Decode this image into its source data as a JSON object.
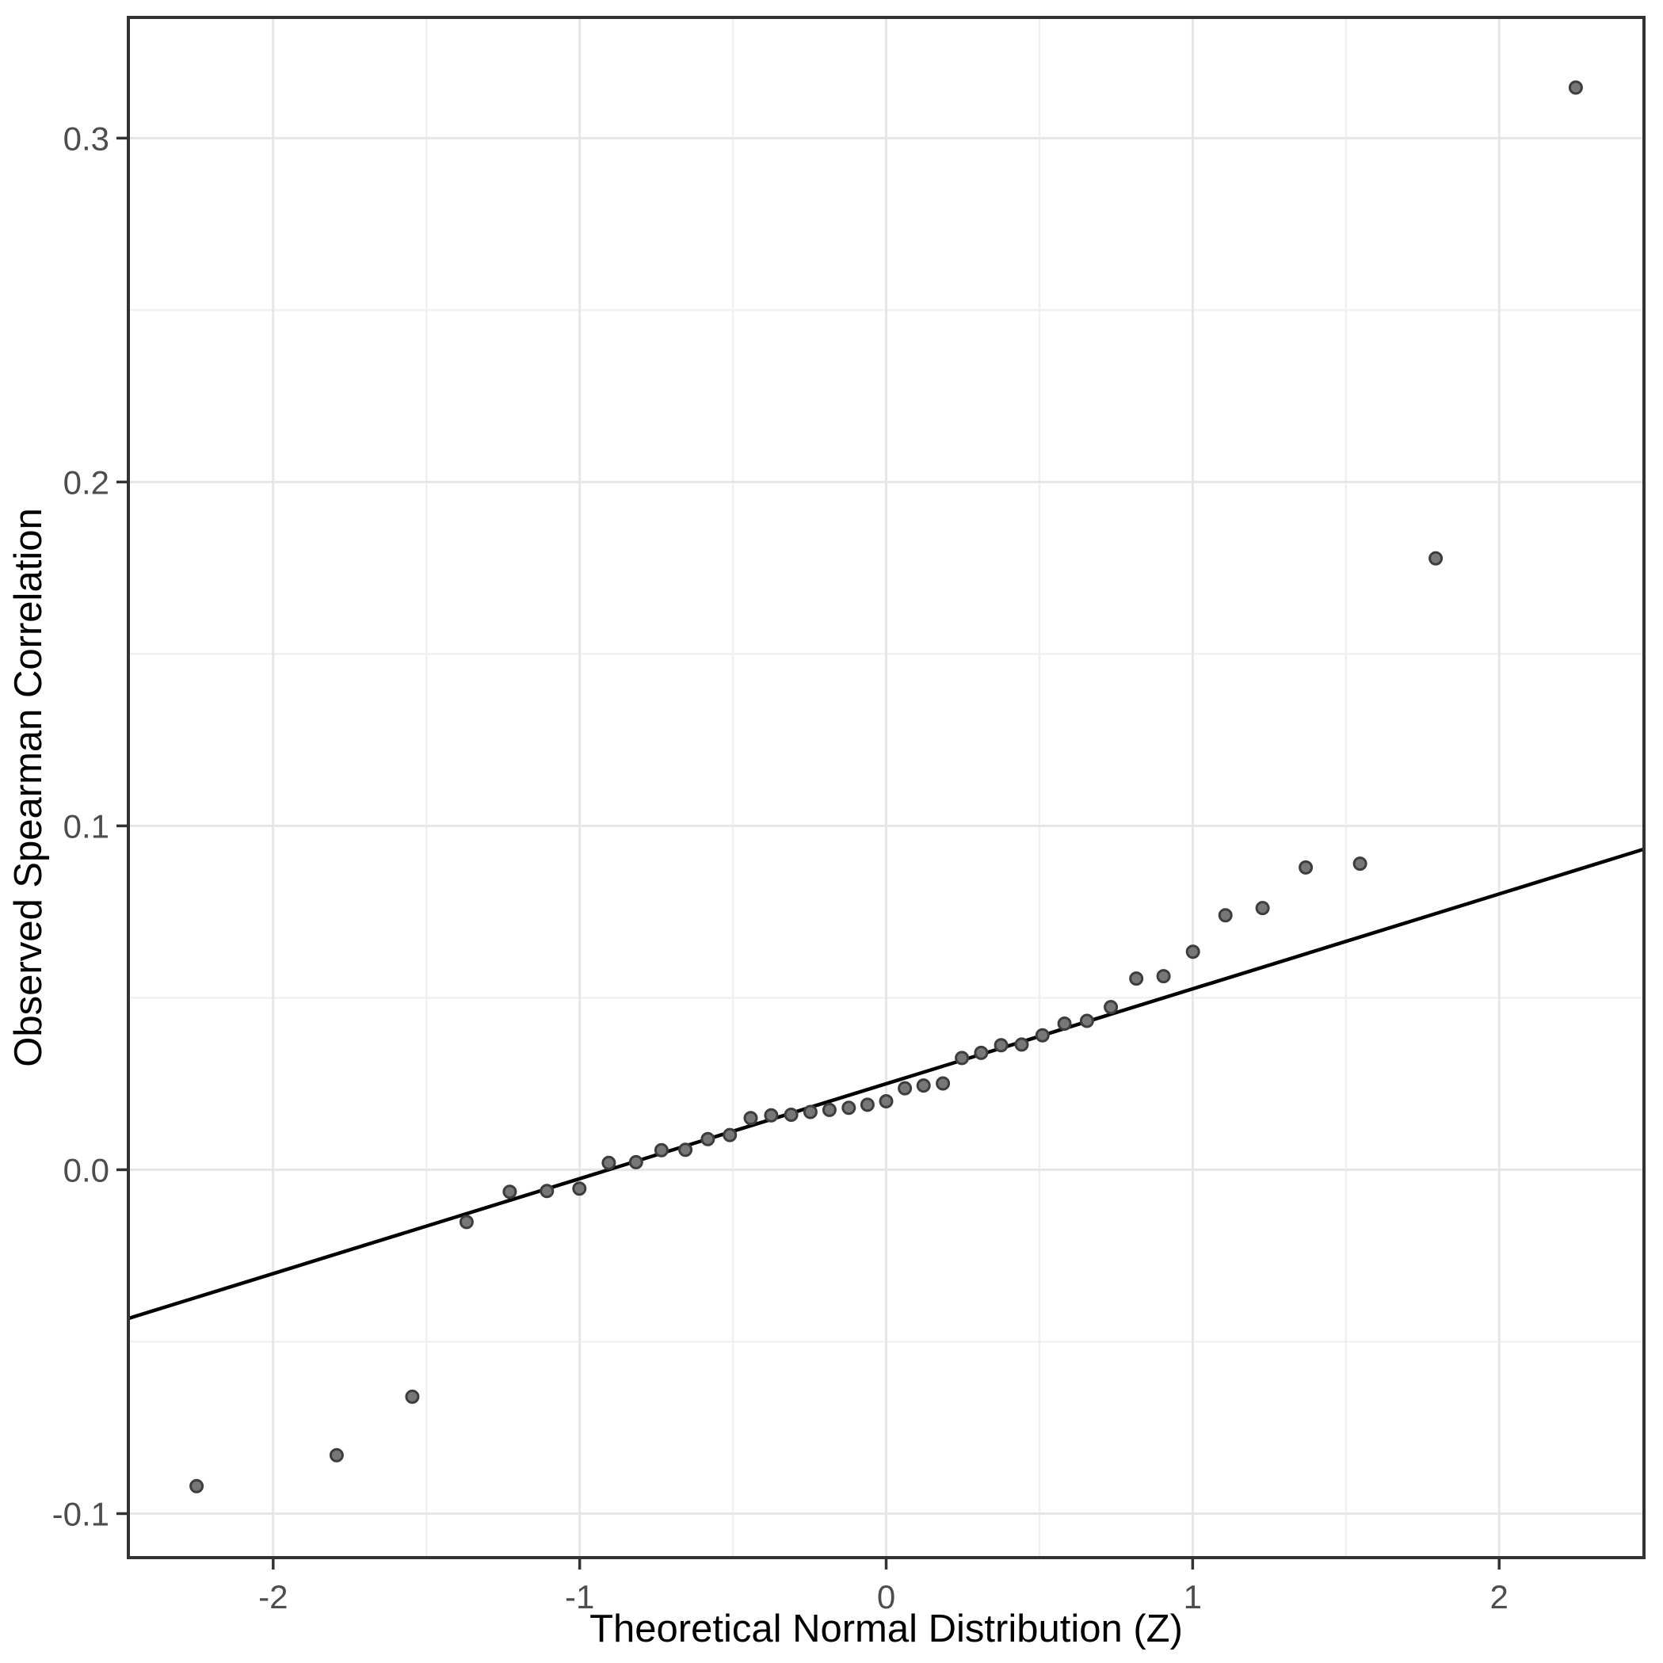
{
  "figure": {
    "kind": "ggplot-style QQ scatter plot",
    "background": "#ffffff"
  },
  "chart_data": {
    "type": "scatter",
    "title": "",
    "xlabel": "Theoretical Normal Distribution (Z)",
    "ylabel": "Observed Spearman Correlation",
    "xlim": [
      -2.4725,
      2.4725
    ],
    "ylim": [
      -0.1128,
      0.3351
    ],
    "grid": true,
    "legend_position": "none",
    "x_ticks": {
      "values": [
        -2,
        -1,
        0,
        1,
        2
      ],
      "labels": [
        "-2",
        "-1",
        "0",
        "1",
        "2"
      ]
    },
    "y_ticks": {
      "values": [
        -0.1,
        0.0,
        0.1,
        0.2,
        0.3
      ],
      "labels": [
        "-0.1",
        "0.0",
        "0.1",
        "0.2",
        "0.3"
      ]
    },
    "x_minor_gridlines": [
      -1.5,
      -0.5,
      0.5,
      1.5
    ],
    "y_minor_gridlines": [
      -0.05,
      0.05,
      0.15,
      0.25
    ],
    "n_points": 41,
    "series": [
      {
        "name": "sample-quantiles",
        "x": [
          -2.25,
          -1.793,
          -1.546,
          -1.369,
          -1.228,
          -1.107,
          -1.001,
          -0.905,
          -0.816,
          -0.733,
          -0.655,
          -0.582,
          -0.51,
          -0.442,
          -0.375,
          -0.31,
          -0.247,
          -0.185,
          -0.122,
          -0.061,
          0,
          0.061,
          0.122,
          0.185,
          0.247,
          0.31,
          0.375,
          0.442,
          0.51,
          0.582,
          0.655,
          0.733,
          0.816,
          0.905,
          1.001,
          1.107,
          1.228,
          1.369,
          1.546,
          1.793,
          2.25
        ],
        "y": [
          -0.092,
          -0.083,
          -0.066,
          -0.0152,
          -0.0064,
          -0.0062,
          -0.0055,
          0.002,
          0.0022,
          0.0057,
          0.0058,
          0.0089,
          0.0101,
          0.015,
          0.0158,
          0.016,
          0.0168,
          0.0174,
          0.018,
          0.0189,
          0.0199,
          0.0237,
          0.0245,
          0.0251,
          0.0325,
          0.034,
          0.0362,
          0.0364,
          0.0391,
          0.0425,
          0.0433,
          0.0473,
          0.0556,
          0.0563,
          0.0634,
          0.074,
          0.0761,
          0.0879,
          0.089,
          0.1778,
          0.3147
        ]
      }
    ],
    "reference_line": {
      "name": "qq-line",
      "intercept": 0.025,
      "slope": 0.0276,
      "x_from": -2.4725,
      "x_to": 2.4725
    }
  },
  "style": {
    "panel_background": "#ffffff",
    "panel_border_color": "#333333",
    "grid_major_color": "#e6e6e6",
    "grid_minor_color": "#f0f0f0",
    "tick_color": "#333333",
    "tick_label_color": "#4d4d4d",
    "axis_title_color": "#000000",
    "point_fill": "#777777",
    "point_stroke": "#3d3d3d",
    "reference_line_color": "#000000"
  }
}
